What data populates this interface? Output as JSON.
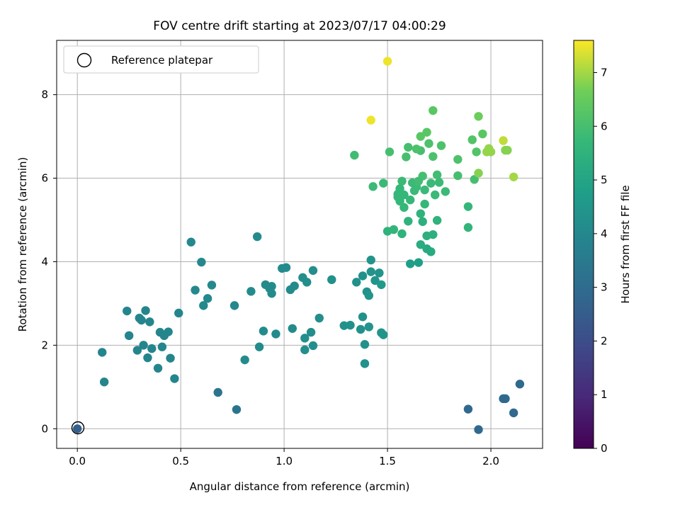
{
  "chart_data": {
    "type": "scatter",
    "title": "FOV centre drift starting at 2023/07/17 04:00:29",
    "xlabel": "Angular distance from reference (arcmin)",
    "ylabel": "Rotation from reference (arcmin)",
    "xlim": [
      -0.1,
      2.25
    ],
    "ylim": [
      -0.47,
      9.3
    ],
    "xticks": [
      0.0,
      0.5,
      1.0,
      1.5,
      2.0
    ],
    "xtick_labels": [
      "0.0",
      "0.5",
      "1.0",
      "1.5",
      "2.0"
    ],
    "yticks": [
      0,
      2,
      4,
      6,
      8
    ],
    "ytick_labels": [
      "0",
      "2",
      "4",
      "6",
      "8"
    ],
    "grid": true,
    "legend": {
      "placement": "top-left",
      "entries": [
        {
          "label": "Reference platepar",
          "marker": "open-circle"
        }
      ]
    },
    "reference_point": {
      "x": 0.0,
      "y": 0.0
    },
    "colorbar": {
      "label": "Hours from first FF file",
      "colormap": "viridis",
      "range": [
        0,
        7.6
      ],
      "ticks": [
        0,
        1,
        2,
        3,
        4,
        5,
        6,
        7
      ],
      "tick_labels": [
        "0",
        "1",
        "2",
        "3",
        "4",
        "5",
        "6",
        "7"
      ]
    },
    "series": [
      {
        "x": [
          0.0,
          0.12,
          0.13,
          0.24,
          0.25,
          0.29,
          0.3,
          0.31,
          0.32,
          0.33,
          0.34,
          0.35,
          0.36,
          0.39,
          0.4,
          0.41,
          0.42,
          0.44,
          0.45,
          0.47,
          0.49,
          0.55,
          0.57,
          0.6,
          0.61,
          0.63,
          0.65,
          0.68,
          0.76,
          0.77,
          0.81,
          0.84,
          0.87,
          0.88,
          0.9,
          0.91,
          0.93,
          0.94,
          0.94,
          0.96,
          0.99,
          1.01,
          1.03,
          1.04,
          1.05,
          1.09,
          1.1,
          1.1,
          1.11,
          1.13,
          1.14,
          1.14,
          1.17,
          1.23,
          1.29,
          1.32,
          1.35,
          1.37,
          1.38,
          1.38,
          1.39,
          1.39,
          1.4,
          1.41,
          1.41,
          1.42,
          1.42,
          1.44,
          1.46,
          1.47,
          1.48,
          1.34,
          1.43,
          1.47,
          1.48,
          1.5,
          1.51,
          1.53,
          1.55,
          1.56,
          1.57,
          1.57,
          1.58,
          1.59,
          1.6,
          1.6,
          1.61,
          1.61,
          1.62,
          1.63,
          1.64,
          1.65,
          1.66,
          1.66,
          1.67,
          1.68,
          1.68,
          1.69,
          1.7,
          1.71,
          1.72,
          1.72,
          1.73,
          1.74,
          1.75,
          1.76,
          1.78,
          1.84,
          1.84,
          1.89,
          1.89,
          1.91,
          1.92,
          1.93,
          1.94,
          1.94,
          1.96,
          1.98,
          1.99,
          2.0,
          1.65,
          1.66,
          1.67,
          1.69,
          1.71,
          1.74,
          1.66,
          1.69,
          1.72,
          1.64,
          1.58,
          1.56,
          1.55,
          1.5,
          1.42,
          2.06,
          2.07,
          2.08,
          2.11,
          1.89,
          1.94,
          2.06,
          2.07,
          2.11,
          2.14
        ],
        "y": [
          0.0,
          1.83,
          1.12,
          2.82,
          2.23,
          1.88,
          2.65,
          2.6,
          2.0,
          2.83,
          1.7,
          2.56,
          1.92,
          1.45,
          2.31,
          1.96,
          2.23,
          2.32,
          1.69,
          1.2,
          2.77,
          4.47,
          3.32,
          3.99,
          2.95,
          3.12,
          3.44,
          0.87,
          2.95,
          0.46,
          1.65,
          3.29,
          4.6,
          1.96,
          2.34,
          3.45,
          3.36,
          3.24,
          3.41,
          2.27,
          3.84,
          3.86,
          3.33,
          2.4,
          3.42,
          3.62,
          2.17,
          1.89,
          3.51,
          2.31,
          1.99,
          3.79,
          2.65,
          3.57,
          2.47,
          2.48,
          3.51,
          2.38,
          3.66,
          2.68,
          1.56,
          2.02,
          3.28,
          2.44,
          3.19,
          4.04,
          3.76,
          3.55,
          3.73,
          2.3,
          2.25,
          6.55,
          5.8,
          3.45,
          5.88,
          4.73,
          6.63,
          4.77,
          5.62,
          5.45,
          5.93,
          4.67,
          5.3,
          6.51,
          6.74,
          4.97,
          3.95,
          5.48,
          5.89,
          5.7,
          5.79,
          3.98,
          6.66,
          4.41,
          6.05,
          5.72,
          5.38,
          4.62,
          6.83,
          5.88,
          6.52,
          4.65,
          5.6,
          4.99,
          5.9,
          6.78,
          5.68,
          6.45,
          6.06,
          5.32,
          4.82,
          6.92,
          5.97,
          6.63,
          7.48,
          6.12,
          7.06,
          6.63,
          6.71,
          6.63,
          5.93,
          5.15,
          4.96,
          4.31,
          4.24,
          6.08,
          7.0,
          7.1,
          7.62,
          6.7,
          5.6,
          5.75,
          5.55,
          8.8,
          7.39,
          6.9,
          6.67,
          6.67,
          6.03,
          0.47,
          -0.02,
          0.72,
          0.72,
          0.38,
          1.07
        ],
        "hours": [
          2.6,
          3.9,
          3.9,
          3.9,
          3.9,
          3.9,
          3.9,
          3.9,
          3.9,
          3.9,
          3.9,
          3.9,
          3.9,
          3.9,
          3.9,
          3.9,
          3.9,
          3.9,
          3.9,
          3.9,
          3.9,
          4.0,
          4.0,
          4.0,
          4.0,
          4.0,
          4.0,
          3.3,
          4.0,
          3.3,
          4.1,
          4.1,
          4.1,
          4.1,
          4.1,
          4.1,
          4.1,
          4.1,
          4.1,
          4.1,
          4.1,
          4.1,
          4.1,
          4.1,
          4.1,
          4.2,
          4.2,
          4.2,
          4.2,
          4.2,
          4.2,
          4.2,
          4.2,
          4.3,
          4.3,
          4.3,
          4.3,
          4.3,
          4.3,
          4.3,
          4.3,
          4.3,
          4.3,
          4.4,
          4.4,
          4.4,
          4.4,
          4.4,
          4.4,
          4.4,
          4.4,
          5.9,
          5.8,
          4.6,
          5.8,
          5.5,
          6.0,
          5.6,
          5.7,
          5.7,
          5.8,
          5.5,
          5.7,
          6.0,
          6.0,
          5.5,
          4.8,
          5.7,
          5.8,
          5.8,
          5.8,
          4.8,
          6.0,
          5.3,
          6.0,
          5.8,
          5.7,
          5.4,
          6.1,
          5.8,
          6.1,
          5.4,
          5.8,
          5.5,
          5.8,
          6.1,
          5.8,
          6.1,
          6.0,
          5.7,
          5.6,
          6.2,
          6.0,
          6.2,
          6.6,
          6.8,
          6.3,
          6.9,
          6.9,
          6.9,
          5.9,
          5.5,
          5.4,
          5.2,
          5.2,
          5.9,
          6.3,
          6.3,
          6.3,
          6.1,
          5.7,
          5.7,
          5.7,
          7.5,
          7.5,
          7.2,
          6.8,
          6.8,
          7.0,
          2.9,
          2.9,
          2.9,
          2.9,
          2.9,
          2.9
        ]
      }
    ]
  }
}
